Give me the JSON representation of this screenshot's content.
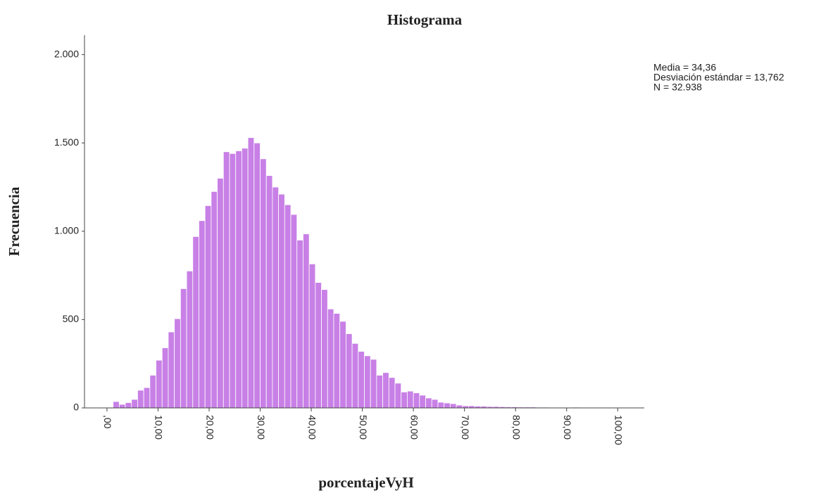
{
  "chart_data": {
    "type": "histogram",
    "title": "Histograma",
    "x_label": "porcentajeVyH",
    "y_label": "Frecuencia",
    "annotations": [
      "Media = 34,36",
      "Desviación estándar = 13,762",
      "N = 32.938"
    ],
    "color": "#c880e6",
    "bins": [
      1.2,
      2.4,
      3.6,
      4.8,
      6.0,
      7.2,
      8.4,
      9.6,
      10.8,
      12.0,
      13.2,
      14.4,
      15.6,
      16.8,
      18.0,
      19.2,
      20.4,
      21.6,
      22.8,
      24.0,
      25.2,
      26.4,
      27.6,
      28.8,
      30.0,
      31.2,
      32.4,
      33.6,
      34.8,
      36.0,
      37.2,
      38.4,
      39.6,
      40.8,
      42.0,
      43.2,
      44.4,
      45.6,
      46.8,
      48.0,
      49.2,
      50.4,
      51.6,
      52.8,
      54.0,
      55.2,
      56.4,
      57.6,
      58.8,
      60.0,
      61.2,
      62.4,
      63.6,
      64.8,
      66.0,
      67.2,
      68.4,
      69.6,
      70.8,
      72.0,
      73.2,
      74.4,
      75.6,
      76.8,
      78.0,
      79.2,
      80.4,
      81.6,
      82.8,
      84.0,
      85.2,
      86.4,
      87.6,
      88.8,
      90.0,
      91.2,
      92.4,
      93.6,
      94.8,
      96.0,
      97.2,
      98.4,
      99.6
    ],
    "values": [
      36,
      20,
      30,
      48,
      100,
      115,
      185,
      270,
      340,
      430,
      505,
      675,
      775,
      970,
      1060,
      1145,
      1225,
      1300,
      1450,
      1440,
      1455,
      1470,
      1530,
      1500,
      1410,
      1315,
      1250,
      1210,
      1150,
      1095,
      950,
      985,
      815,
      710,
      670,
      560,
      535,
      490,
      420,
      365,
      320,
      295,
      275,
      185,
      200,
      172,
      140,
      90,
      95,
      85,
      72,
      56,
      48,
      32,
      28,
      24,
      16,
      12,
      12,
      10,
      10,
      8,
      8,
      7,
      6,
      6,
      5,
      5,
      5,
      4,
      4,
      3,
      3,
      3,
      2,
      4,
      3,
      2,
      2,
      1,
      1,
      1
    ],
    "xlim": [
      -4.4,
      105.2
    ],
    "xticks": [
      {
        "value": 0,
        "label": ",00"
      },
      {
        "value": 10,
        "label": "10,00"
      },
      {
        "value": 20,
        "label": "20,00"
      },
      {
        "value": 30,
        "label": "30,00"
      },
      {
        "value": 40,
        "label": "40,00"
      },
      {
        "value": 50,
        "label": "50,00"
      },
      {
        "value": 60,
        "label": "60,00"
      },
      {
        "value": 70,
        "label": "70,00"
      },
      {
        "value": 80,
        "label": "80,00"
      },
      {
        "value": 90,
        "label": "90,00"
      },
      {
        "value": 100,
        "label": "100,00"
      }
    ],
    "ylim": [
      0,
      2110
    ],
    "yticks": [
      0,
      500,
      {
        "value": 1000,
        "label": "1.000"
      },
      {
        "value": 1500,
        "label": "1.500"
      },
      {
        "value": 2000,
        "label": "2.000"
      }
    ],
    "grid": false
  }
}
